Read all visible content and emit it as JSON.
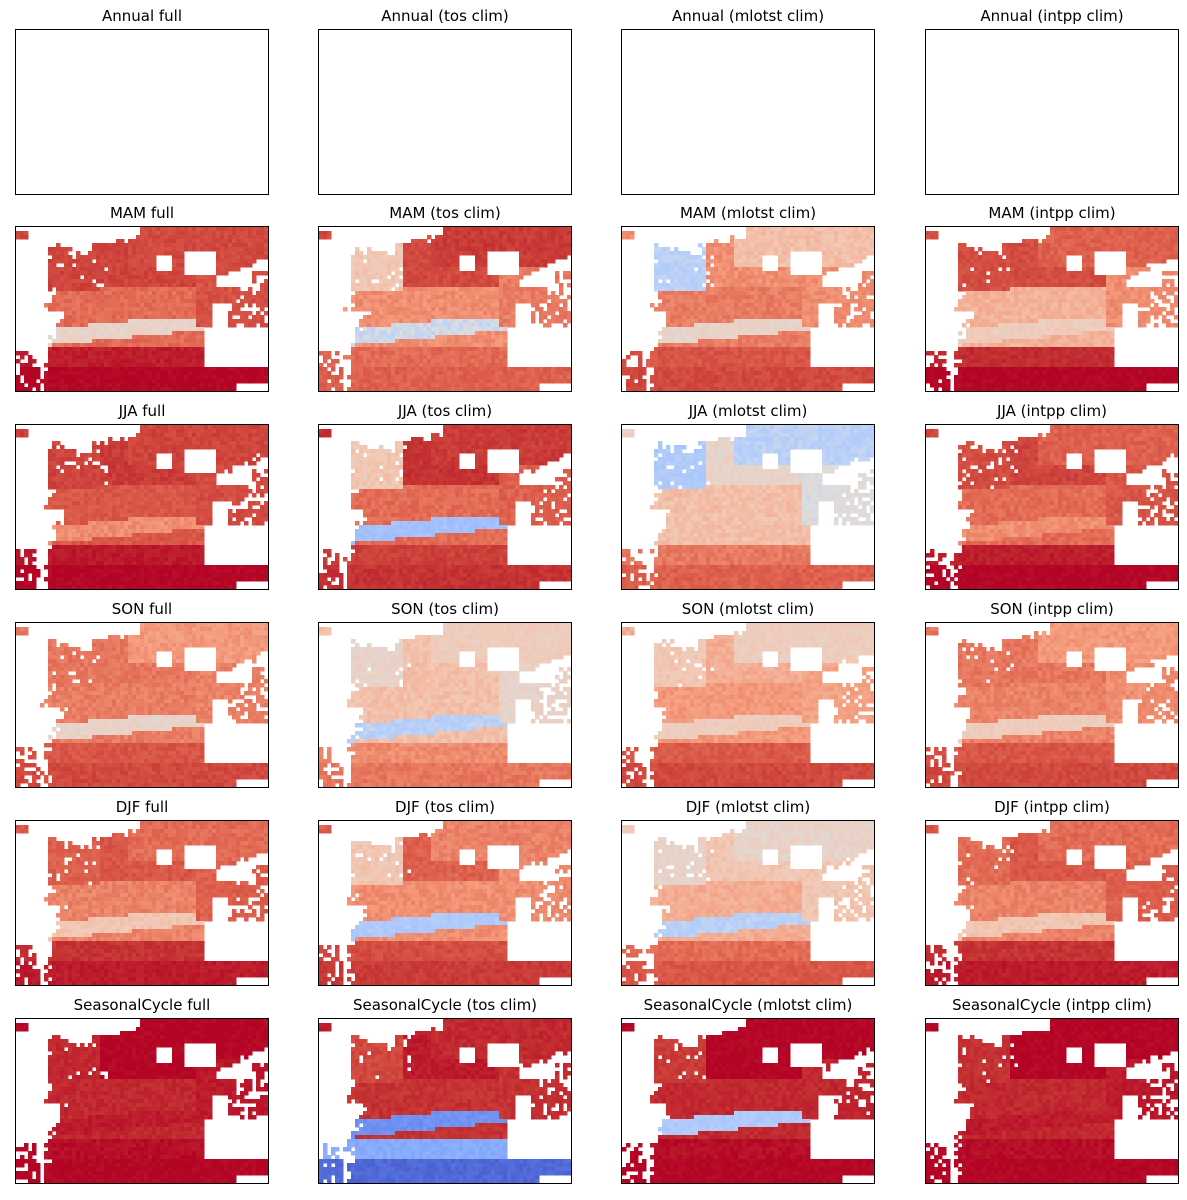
{
  "figure": {
    "rows": [
      "Annual",
      "MAM",
      "JJA",
      "SON",
      "DJF",
      "SeasonalCycle"
    ],
    "cols": [
      "full",
      "(tos clim)",
      "(mlotst clim)",
      "(intpp clim)"
    ]
  },
  "chart_data": {
    "type": "heatmap",
    "colormap": "coolwarm",
    "region": "North Atlantic",
    "axes_ticks": "none",
    "panels": [
      {
        "title": "Annual full",
        "state": "empty"
      },
      {
        "title": "Annual (tos clim)",
        "state": "empty"
      },
      {
        "title": "Annual (mlotst clim)",
        "state": "empty"
      },
      {
        "title": "Annual (intpp clim)",
        "state": "empty"
      },
      {
        "title": "MAM full",
        "state": "filled",
        "fields": {
          "south": 1.0,
          "band": 0.55,
          "center": 0.78,
          "north": 0.86,
          "labrador": 0.86,
          "arctic": 0.85,
          "east": 0.83,
          "hudson": 0.82
        }
      },
      {
        "title": "MAM (tos clim)",
        "state": "filled",
        "fields": {
          "south": 0.8,
          "band": 0.48,
          "center": 0.72,
          "north": 0.85,
          "labrador": 0.6,
          "arctic": 0.88,
          "east": 0.75,
          "hudson": 0.3
        }
      },
      {
        "title": "MAM (mlotst clim)",
        "state": "filled",
        "fields": {
          "south": 0.85,
          "band": 0.55,
          "center": 0.75,
          "north": 0.72,
          "labrador": 0.45,
          "arctic": 0.62,
          "east": 0.72,
          "hudson": 0.35
        }
      },
      {
        "title": "MAM (intpp clim)",
        "state": "filled",
        "fields": {
          "south": 1.0,
          "band": 0.58,
          "center": 0.65,
          "north": 0.84,
          "labrador": 0.84,
          "arctic": 0.8,
          "east": 0.72,
          "hudson": 0.78
        }
      },
      {
        "title": "JJA full",
        "state": "filled",
        "fields": {
          "south": 1.0,
          "band": 0.72,
          "center": 0.82,
          "north": 0.88,
          "labrador": 0.86,
          "arctic": 0.86,
          "east": 0.84,
          "hudson": 0.8
        }
      },
      {
        "title": "JJA (tos clim)",
        "state": "filled",
        "fields": {
          "south": 0.9,
          "band": 0.38,
          "center": 0.78,
          "north": 0.9,
          "labrador": 0.6,
          "arctic": 0.88,
          "east": 0.8,
          "hudson": 0.15
        }
      },
      {
        "title": "JJA (mlotst clim)",
        "state": "filled",
        "fields": {
          "south": 0.8,
          "band": 0.62,
          "center": 0.62,
          "north": 0.55,
          "labrador": 0.42,
          "arctic": 0.45,
          "east": 0.5,
          "hudson": 0.3
        }
      },
      {
        "title": "JJA (intpp clim)",
        "state": "filled",
        "fields": {
          "south": 1.0,
          "band": 0.72,
          "center": 0.78,
          "north": 0.86,
          "labrador": 0.84,
          "arctic": 0.8,
          "east": 0.82,
          "hudson": 0.78
        }
      },
      {
        "title": "SON full",
        "state": "filled",
        "fields": {
          "south": 0.85,
          "band": 0.55,
          "center": 0.75,
          "north": 0.76,
          "labrador": 0.76,
          "arctic": 0.7,
          "east": 0.74,
          "hudson": 0.7
        }
      },
      {
        "title": "SON (tos clim)",
        "state": "filled",
        "fields": {
          "south": 0.76,
          "band": 0.45,
          "center": 0.62,
          "north": 0.62,
          "labrador": 0.55,
          "arctic": 0.58,
          "east": 0.55,
          "hudson": 0.4
        }
      },
      {
        "title": "SON (mlotst clim)",
        "state": "filled",
        "fields": {
          "south": 0.85,
          "band": 0.58,
          "center": 0.7,
          "north": 0.66,
          "labrador": 0.6,
          "arctic": 0.58,
          "east": 0.68,
          "hudson": 0.55
        }
      },
      {
        "title": "SON (intpp clim)",
        "state": "filled",
        "fields": {
          "south": 0.85,
          "band": 0.58,
          "center": 0.74,
          "north": 0.76,
          "labrador": 0.76,
          "arctic": 0.7,
          "east": 0.72,
          "hudson": 0.7
        }
      },
      {
        "title": "DJF full",
        "state": "filled",
        "fields": {
          "south": 0.95,
          "band": 0.6,
          "center": 0.74,
          "north": 0.82,
          "labrador": 0.8,
          "arctic": 0.78,
          "east": 0.8,
          "hudson": 0.72
        }
      },
      {
        "title": "DJF (tos clim)",
        "state": "filled",
        "fields": {
          "south": 0.88,
          "band": 0.42,
          "center": 0.72,
          "north": 0.8,
          "labrador": 0.6,
          "arctic": 0.74,
          "east": 0.72,
          "hudson": 0.35
        }
      },
      {
        "title": "DJF (mlotst clim)",
        "state": "filled",
        "fields": {
          "south": 0.82,
          "band": 0.45,
          "center": 0.66,
          "north": 0.6,
          "labrador": 0.55,
          "arctic": 0.55,
          "east": 0.6,
          "hudson": 0.5
        }
      },
      {
        "title": "DJF (intpp clim)",
        "state": "filled",
        "fields": {
          "south": 0.95,
          "band": 0.6,
          "center": 0.74,
          "north": 0.82,
          "labrador": 0.78,
          "arctic": 0.78,
          "east": 0.8,
          "hudson": 0.72
        }
      },
      {
        "title": "SeasonalCycle full",
        "state": "filled",
        "fields": {
          "south": 1.0,
          "band": 0.95,
          "center": 0.92,
          "north": 1.0,
          "labrador": 0.92,
          "arctic": 1.0,
          "east": 0.95,
          "hudson": 0.9
        }
      },
      {
        "title": "SeasonalCycle (tos clim)",
        "state": "filled",
        "fields": {
          "south": 0.08,
          "band": 0.2,
          "center": 0.9,
          "north": 0.95,
          "labrador": 0.85,
          "arctic": 0.92,
          "east": 0.9,
          "hudson": 0.25
        }
      },
      {
        "title": "SeasonalCycle (mlotst clim)",
        "state": "filled",
        "fields": {
          "south": 1.0,
          "band": 0.42,
          "center": 0.92,
          "north": 1.0,
          "labrador": 0.88,
          "arctic": 1.0,
          "east": 0.92,
          "hudson": 0.85
        }
      },
      {
        "title": "SeasonalCycle (intpp clim)",
        "state": "filled",
        "fields": {
          "south": 1.0,
          "band": 0.95,
          "center": 0.92,
          "north": 1.0,
          "labrador": 0.9,
          "arctic": 1.0,
          "east": 0.95,
          "hudson": 0.3
        }
      }
    ]
  }
}
